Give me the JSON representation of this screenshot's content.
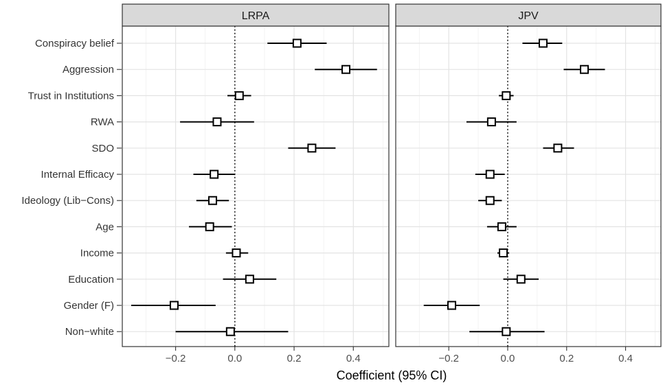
{
  "chart_data": {
    "type": "forest",
    "xlabel": "Coefficient (95% CI)",
    "grid": true,
    "reference_line": 0,
    "variables": [
      "Conspiracy belief",
      "Aggression",
      "Trust in Institutions",
      "RWA",
      "SDO",
      "Internal Efficacy",
      "Ideology (Lib−Cons)",
      "Age",
      "Income",
      "Education",
      "Gender (F)",
      "Non−white"
    ],
    "panels": [
      {
        "name": "LRPA",
        "xlim": [
          -0.38,
          0.52
        ],
        "ticks": [
          -0.2,
          0.0,
          0.2,
          0.4
        ],
        "tick_labels": [
          "−0.2",
          "0.0",
          "0.2",
          "0.4"
        ],
        "estimates": [
          0.21,
          0.375,
          0.015,
          -0.06,
          0.26,
          -0.07,
          -0.075,
          -0.085,
          0.005,
          0.05,
          -0.205,
          -0.015
        ],
        "ci_low": [
          0.11,
          0.27,
          -0.025,
          -0.185,
          0.18,
          -0.14,
          -0.13,
          -0.155,
          -0.03,
          -0.04,
          -0.35,
          -0.2
        ],
        "ci_high": [
          0.31,
          0.48,
          0.055,
          0.065,
          0.34,
          0.0,
          -0.02,
          -0.01,
          0.045,
          0.14,
          -0.065,
          0.18
        ]
      },
      {
        "name": "JPV",
        "xlim": [
          -0.38,
          0.52
        ],
        "ticks": [
          -0.2,
          0.0,
          0.2,
          0.4
        ],
        "tick_labels": [
          "−0.2",
          "0.0",
          "0.2",
          "0.4"
        ],
        "estimates": [
          0.12,
          0.26,
          -0.005,
          -0.055,
          0.17,
          -0.06,
          -0.06,
          -0.02,
          -0.015,
          0.045,
          -0.19,
          -0.005
        ],
        "ci_low": [
          0.05,
          0.19,
          -0.03,
          -0.14,
          0.12,
          -0.11,
          -0.1,
          -0.07,
          -0.035,
          -0.015,
          -0.285,
          -0.13
        ],
        "ci_high": [
          0.185,
          0.33,
          0.02,
          0.03,
          0.225,
          -0.01,
          -0.02,
          0.03,
          0.005,
          0.105,
          -0.095,
          0.125
        ]
      }
    ]
  }
}
